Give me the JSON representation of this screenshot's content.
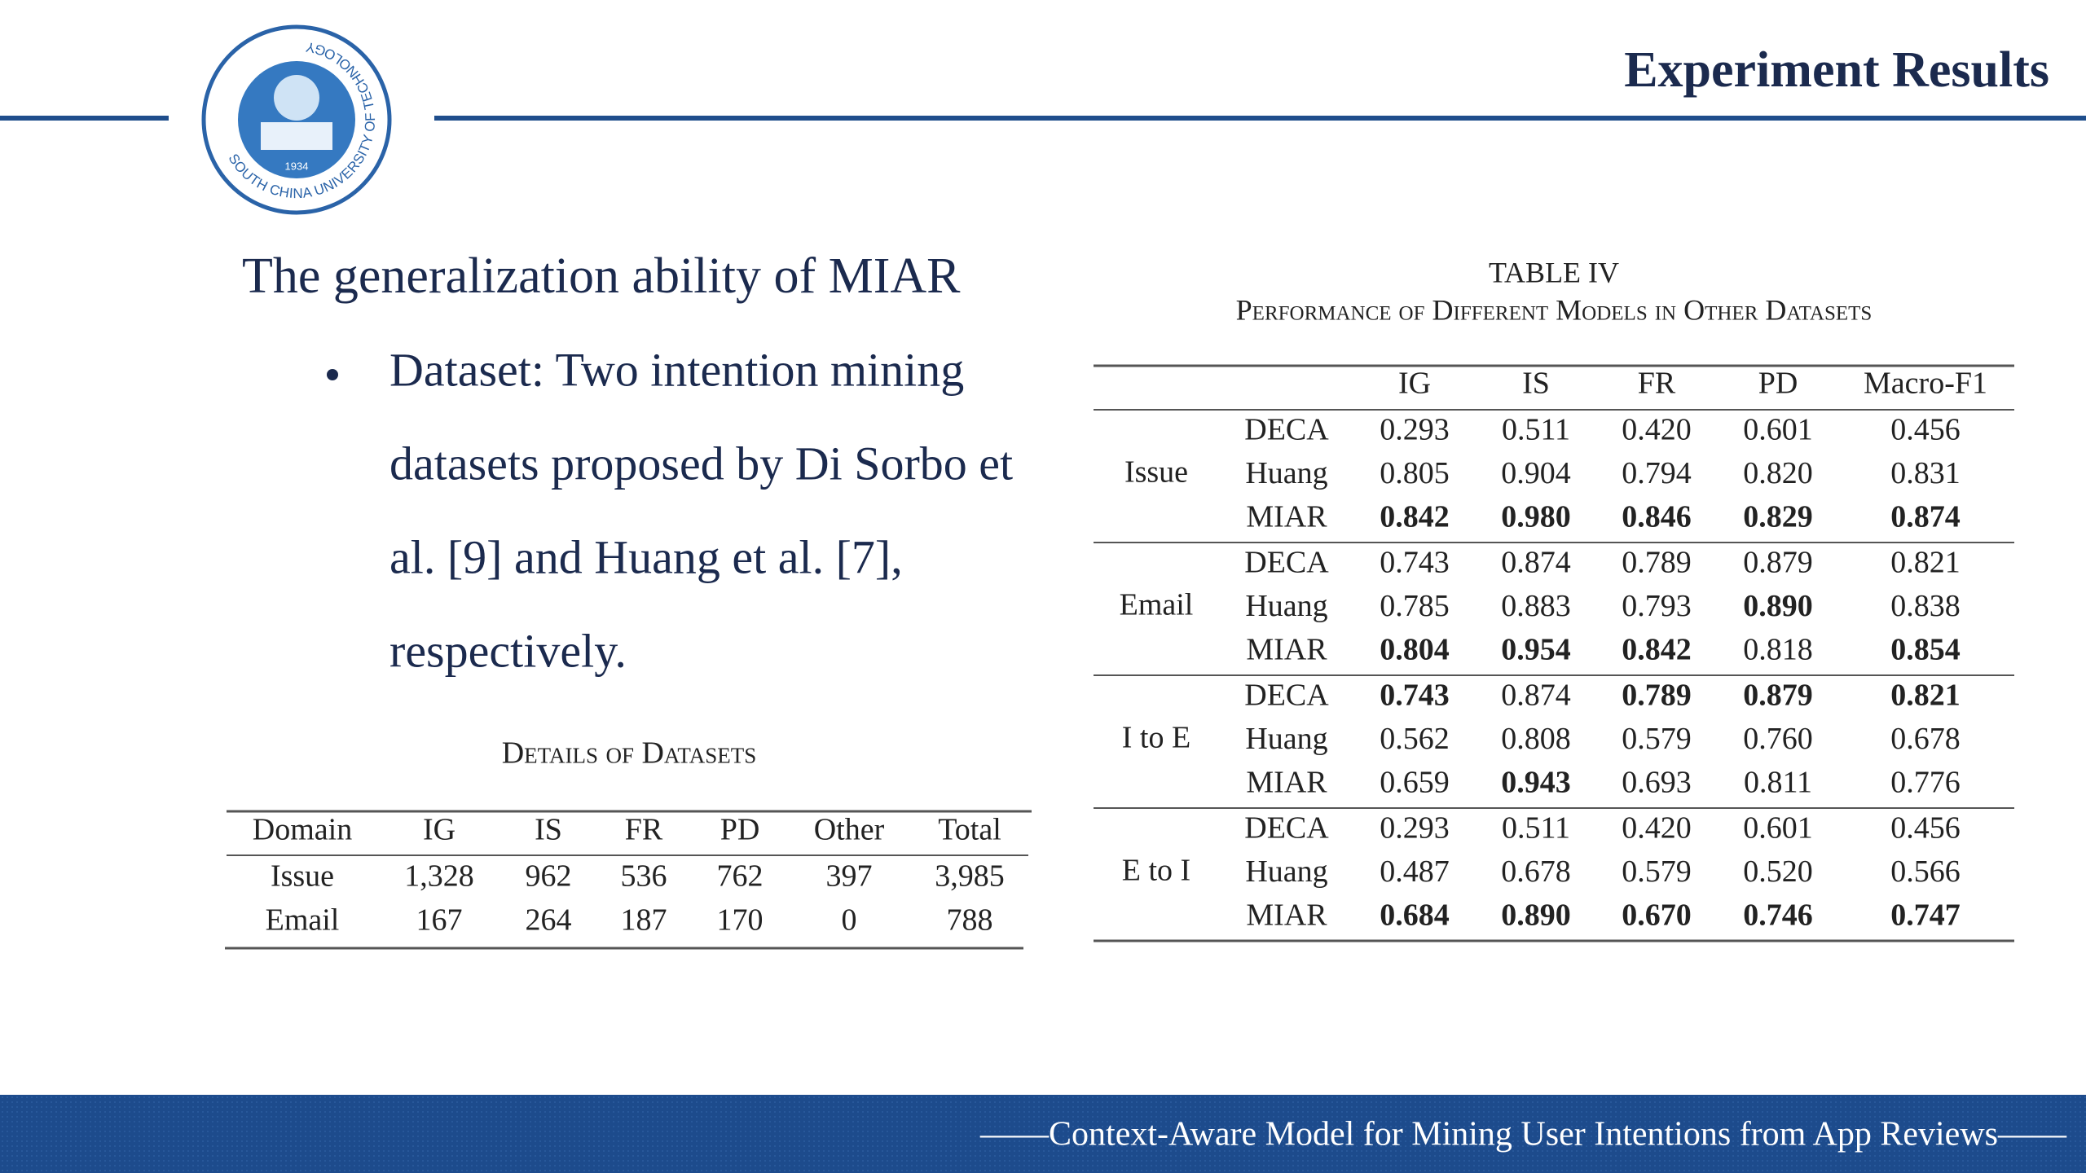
{
  "header": {
    "title": "Experiment Results"
  },
  "logo": {
    "ring_text": "SOUTH CHINA UNIVERSITY OF TECHNOLOGY",
    "year": "1934"
  },
  "body": {
    "heading": "The generalization ability of MIAR",
    "bullet_lines": [
      "Dataset: Two intention mining",
      "datasets proposed by Di Sorbo et",
      "al. [9] and Huang et al. [7],",
      "respectively."
    ]
  },
  "details_table": {
    "caption": "Details of Datasets",
    "header": [
      "Domain",
      "IG",
      "IS",
      "FR",
      "PD",
      "Other",
      "Total"
    ],
    "rows": [
      [
        "Issue",
        "1,328",
        "962",
        "536",
        "762",
        "397",
        "3,985"
      ],
      [
        "Email",
        "167",
        "264",
        "187",
        "170",
        "0",
        "788"
      ]
    ]
  },
  "results_table": {
    "label": "TABLE IV",
    "caption": "Performance of Different Models in Other Datasets",
    "header": [
      "IG",
      "IS",
      "FR",
      "PD",
      "Macro-F1"
    ],
    "groups": [
      {
        "name": "Issue",
        "rows": [
          {
            "model": "DECA",
            "values": [
              "0.293",
              "0.511",
              "0.420",
              "0.601",
              "0.456"
            ],
            "bold": [
              false,
              false,
              false,
              false,
              false
            ]
          },
          {
            "model": "Huang",
            "values": [
              "0.805",
              "0.904",
              "0.794",
              "0.820",
              "0.831"
            ],
            "bold": [
              false,
              false,
              false,
              false,
              false
            ]
          },
          {
            "model": "MIAR",
            "values": [
              "0.842",
              "0.980",
              "0.846",
              "0.829",
              "0.874"
            ],
            "bold": [
              true,
              true,
              true,
              true,
              true
            ]
          }
        ]
      },
      {
        "name": "Email",
        "rows": [
          {
            "model": "DECA",
            "values": [
              "0.743",
              "0.874",
              "0.789",
              "0.879",
              "0.821"
            ],
            "bold": [
              false,
              false,
              false,
              false,
              false
            ]
          },
          {
            "model": "Huang",
            "values": [
              "0.785",
              "0.883",
              "0.793",
              "0.890",
              "0.838"
            ],
            "bold": [
              false,
              false,
              false,
              true,
              false
            ]
          },
          {
            "model": "MIAR",
            "values": [
              "0.804",
              "0.954",
              "0.842",
              "0.818",
              "0.854"
            ],
            "bold": [
              true,
              true,
              true,
              false,
              true
            ]
          }
        ]
      },
      {
        "name": "I to E",
        "rows": [
          {
            "model": "DECA",
            "values": [
              "0.743",
              "0.874",
              "0.789",
              "0.879",
              "0.821"
            ],
            "bold": [
              true,
              false,
              true,
              true,
              true
            ]
          },
          {
            "model": "Huang",
            "values": [
              "0.562",
              "0.808",
              "0.579",
              "0.760",
              "0.678"
            ],
            "bold": [
              false,
              false,
              false,
              false,
              false
            ]
          },
          {
            "model": "MIAR",
            "values": [
              "0.659",
              "0.943",
              "0.693",
              "0.811",
              "0.776"
            ],
            "bold": [
              false,
              true,
              false,
              false,
              false
            ]
          }
        ]
      },
      {
        "name": "E to I",
        "rows": [
          {
            "model": "DECA",
            "values": [
              "0.293",
              "0.511",
              "0.420",
              "0.601",
              "0.456"
            ],
            "bold": [
              false,
              false,
              false,
              false,
              false
            ]
          },
          {
            "model": "Huang",
            "values": [
              "0.487",
              "0.678",
              "0.579",
              "0.520",
              "0.566"
            ],
            "bold": [
              false,
              false,
              false,
              false,
              false
            ]
          },
          {
            "model": "MIAR",
            "values": [
              "0.684",
              "0.890",
              "0.670",
              "0.746",
              "0.747"
            ],
            "bold": [
              true,
              true,
              true,
              true,
              true
            ]
          }
        ]
      }
    ]
  },
  "footer": {
    "text": "——Context-Aware Model for Mining User Intentions from App Reviews——"
  }
}
